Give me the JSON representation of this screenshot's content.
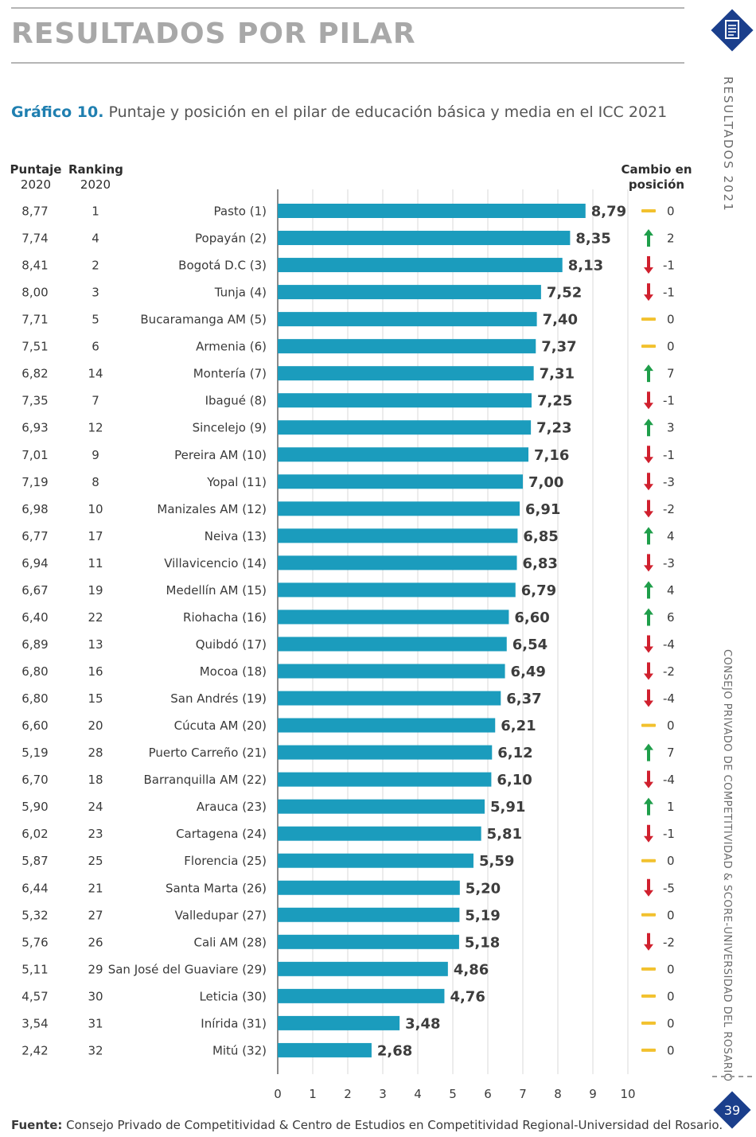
{
  "section_title": "RESULTADOS POR PILAR",
  "caption_number": "Gráfico 10.",
  "caption_text": " Puntaje y posición en el pilar de educación básica y media en el ICC 2021",
  "headers": {
    "score_2020": [
      "Puntaje",
      "2020"
    ],
    "rank_2020": [
      "Ranking",
      "2020"
    ],
    "change": [
      "Cambio en",
      "posición"
    ]
  },
  "side_title": "RESULTADOS  2021",
  "side_org": "CONSEJO PRIVADO DE COMPETITIVIDAD & SCORE-UNIVERSIDAD DEL ROSARIO",
  "page_number": "39",
  "source_label": "Fuente:",
  "source_text": " Consejo Privado de Competitividad & Centro de Estudios en Competitividad Regional-Universidad del Rosario.",
  "colors": {
    "bar": "#1b9cbd",
    "up": "#1f9e4a",
    "down": "#d0202e",
    "same": "#f2c12e",
    "caption_accent": "#1f7fb0",
    "badge": "#1b3f8c"
  },
  "chart_data": {
    "type": "bar",
    "orientation": "horizontal",
    "xlim": [
      0,
      10
    ],
    "ticks": [
      "0",
      "1",
      "2",
      "3",
      "4",
      "5",
      "6",
      "7",
      "8",
      "9",
      "10"
    ],
    "grid": true,
    "rows": [
      {
        "city": "Pasto (1)",
        "score_2020": "8,77",
        "rank_2020": "1",
        "value": 8.79,
        "label": "8,79",
        "dir": "same",
        "change": "0"
      },
      {
        "city": "Popayán (2)",
        "score_2020": "7,74",
        "rank_2020": "4",
        "value": 8.35,
        "label": "8,35",
        "dir": "up",
        "change": "2"
      },
      {
        "city": "Bogotá D.C (3)",
        "score_2020": "8,41",
        "rank_2020": "2",
        "value": 8.13,
        "label": "8,13",
        "dir": "down",
        "change": "-1"
      },
      {
        "city": "Tunja (4)",
        "score_2020": "8,00",
        "rank_2020": "3",
        "value": 7.52,
        "label": "7,52",
        "dir": "down",
        "change": "-1"
      },
      {
        "city": "Bucaramanga AM (5)",
        "score_2020": "7,71",
        "rank_2020": "5",
        "value": 7.4,
        "label": "7,40",
        "dir": "same",
        "change": "0"
      },
      {
        "city": "Armenia (6)",
        "score_2020": "7,51",
        "rank_2020": "6",
        "value": 7.37,
        "label": "7,37",
        "dir": "same",
        "change": "0"
      },
      {
        "city": "Montería (7)",
        "score_2020": "6,82",
        "rank_2020": "14",
        "value": 7.31,
        "label": "7,31",
        "dir": "up",
        "change": "7"
      },
      {
        "city": "Ibagué (8)",
        "score_2020": "7,35",
        "rank_2020": "7",
        "value": 7.25,
        "label": "7,25",
        "dir": "down",
        "change": "-1"
      },
      {
        "city": "Sincelejo (9)",
        "score_2020": "6,93",
        "rank_2020": "12",
        "value": 7.23,
        "label": "7,23",
        "dir": "up",
        "change": "3"
      },
      {
        "city": "Pereira AM (10)",
        "score_2020": "7,01",
        "rank_2020": "9",
        "value": 7.16,
        "label": "7,16",
        "dir": "down",
        "change": "-1"
      },
      {
        "city": "Yopal (11)",
        "score_2020": "7,19",
        "rank_2020": "8",
        "value": 7.0,
        "label": "7,00",
        "dir": "down",
        "change": "-3"
      },
      {
        "city": "Manizales AM (12)",
        "score_2020": "6,98",
        "rank_2020": "10",
        "value": 6.91,
        "label": "6,91",
        "dir": "down",
        "change": "-2"
      },
      {
        "city": "Neiva (13)",
        "score_2020": "6,77",
        "rank_2020": "17",
        "value": 6.85,
        "label": "6,85",
        "dir": "up",
        "change": "4"
      },
      {
        "city": "Villavicencio (14)",
        "score_2020": "6,94",
        "rank_2020": "11",
        "value": 6.83,
        "label": "6,83",
        "dir": "down",
        "change": "-3"
      },
      {
        "city": "Medellín AM (15)",
        "score_2020": "6,67",
        "rank_2020": "19",
        "value": 6.79,
        "label": "6,79",
        "dir": "up",
        "change": "4"
      },
      {
        "city": "Riohacha (16)",
        "score_2020": "6,40",
        "rank_2020": "22",
        "value": 6.6,
        "label": "6,60",
        "dir": "up",
        "change": "6"
      },
      {
        "city": "Quibdó (17)",
        "score_2020": "6,89",
        "rank_2020": "13",
        "value": 6.54,
        "label": "6,54",
        "dir": "down",
        "change": "-4"
      },
      {
        "city": "Mocoa (18)",
        "score_2020": "6,80",
        "rank_2020": "16",
        "value": 6.49,
        "label": "6,49",
        "dir": "down",
        "change": "-2"
      },
      {
        "city": "San Andrés (19)",
        "score_2020": "6,80",
        "rank_2020": "15",
        "value": 6.37,
        "label": "6,37",
        "dir": "down",
        "change": "-4"
      },
      {
        "city": "Cúcuta AM (20)",
        "score_2020": "6,60",
        "rank_2020": "20",
        "value": 6.21,
        "label": "6,21",
        "dir": "same",
        "change": "0"
      },
      {
        "city": "Puerto Carreño (21)",
        "score_2020": "5,19",
        "rank_2020": "28",
        "value": 6.12,
        "label": "6,12",
        "dir": "up",
        "change": "7"
      },
      {
        "city": "Barranquilla AM (22)",
        "score_2020": "6,70",
        "rank_2020": "18",
        "value": 6.1,
        "label": "6,10",
        "dir": "down",
        "change": "-4"
      },
      {
        "city": "Arauca (23)",
        "score_2020": "5,90",
        "rank_2020": "24",
        "value": 5.91,
        "label": "5,91",
        "dir": "up",
        "change": "1"
      },
      {
        "city": "Cartagena (24)",
        "score_2020": "6,02",
        "rank_2020": "23",
        "value": 5.81,
        "label": "5,81",
        "dir": "down",
        "change": "-1"
      },
      {
        "city": "Florencia (25)",
        "score_2020": "5,87",
        "rank_2020": "25",
        "value": 5.59,
        "label": "5,59",
        "dir": "same",
        "change": "0"
      },
      {
        "city": "Santa Marta (26)",
        "score_2020": "6,44",
        "rank_2020": "21",
        "value": 5.2,
        "label": "5,20",
        "dir": "down",
        "change": "-5"
      },
      {
        "city": "Valledupar (27)",
        "score_2020": "5,32",
        "rank_2020": "27",
        "value": 5.19,
        "label": "5,19",
        "dir": "same",
        "change": "0"
      },
      {
        "city": "Cali AM (28)",
        "score_2020": "5,76",
        "rank_2020": "26",
        "value": 5.18,
        "label": "5,18",
        "dir": "down",
        "change": "-2"
      },
      {
        "city": "San José del Guaviare (29)",
        "score_2020": "5,11",
        "rank_2020": "29",
        "value": 4.86,
        "label": "4,86",
        "dir": "same",
        "change": "0"
      },
      {
        "city": "Leticia (30)",
        "score_2020": "4,57",
        "rank_2020": "30",
        "value": 4.76,
        "label": "4,76",
        "dir": "same",
        "change": "0"
      },
      {
        "city": "Inírida (31)",
        "score_2020": "3,54",
        "rank_2020": "31",
        "value": 3.48,
        "label": "3,48",
        "dir": "same",
        "change": "0"
      },
      {
        "city": "Mitú (32)",
        "score_2020": "2,42",
        "rank_2020": "32",
        "value": 2.68,
        "label": "2,68",
        "dir": "same",
        "change": "0"
      }
    ]
  }
}
